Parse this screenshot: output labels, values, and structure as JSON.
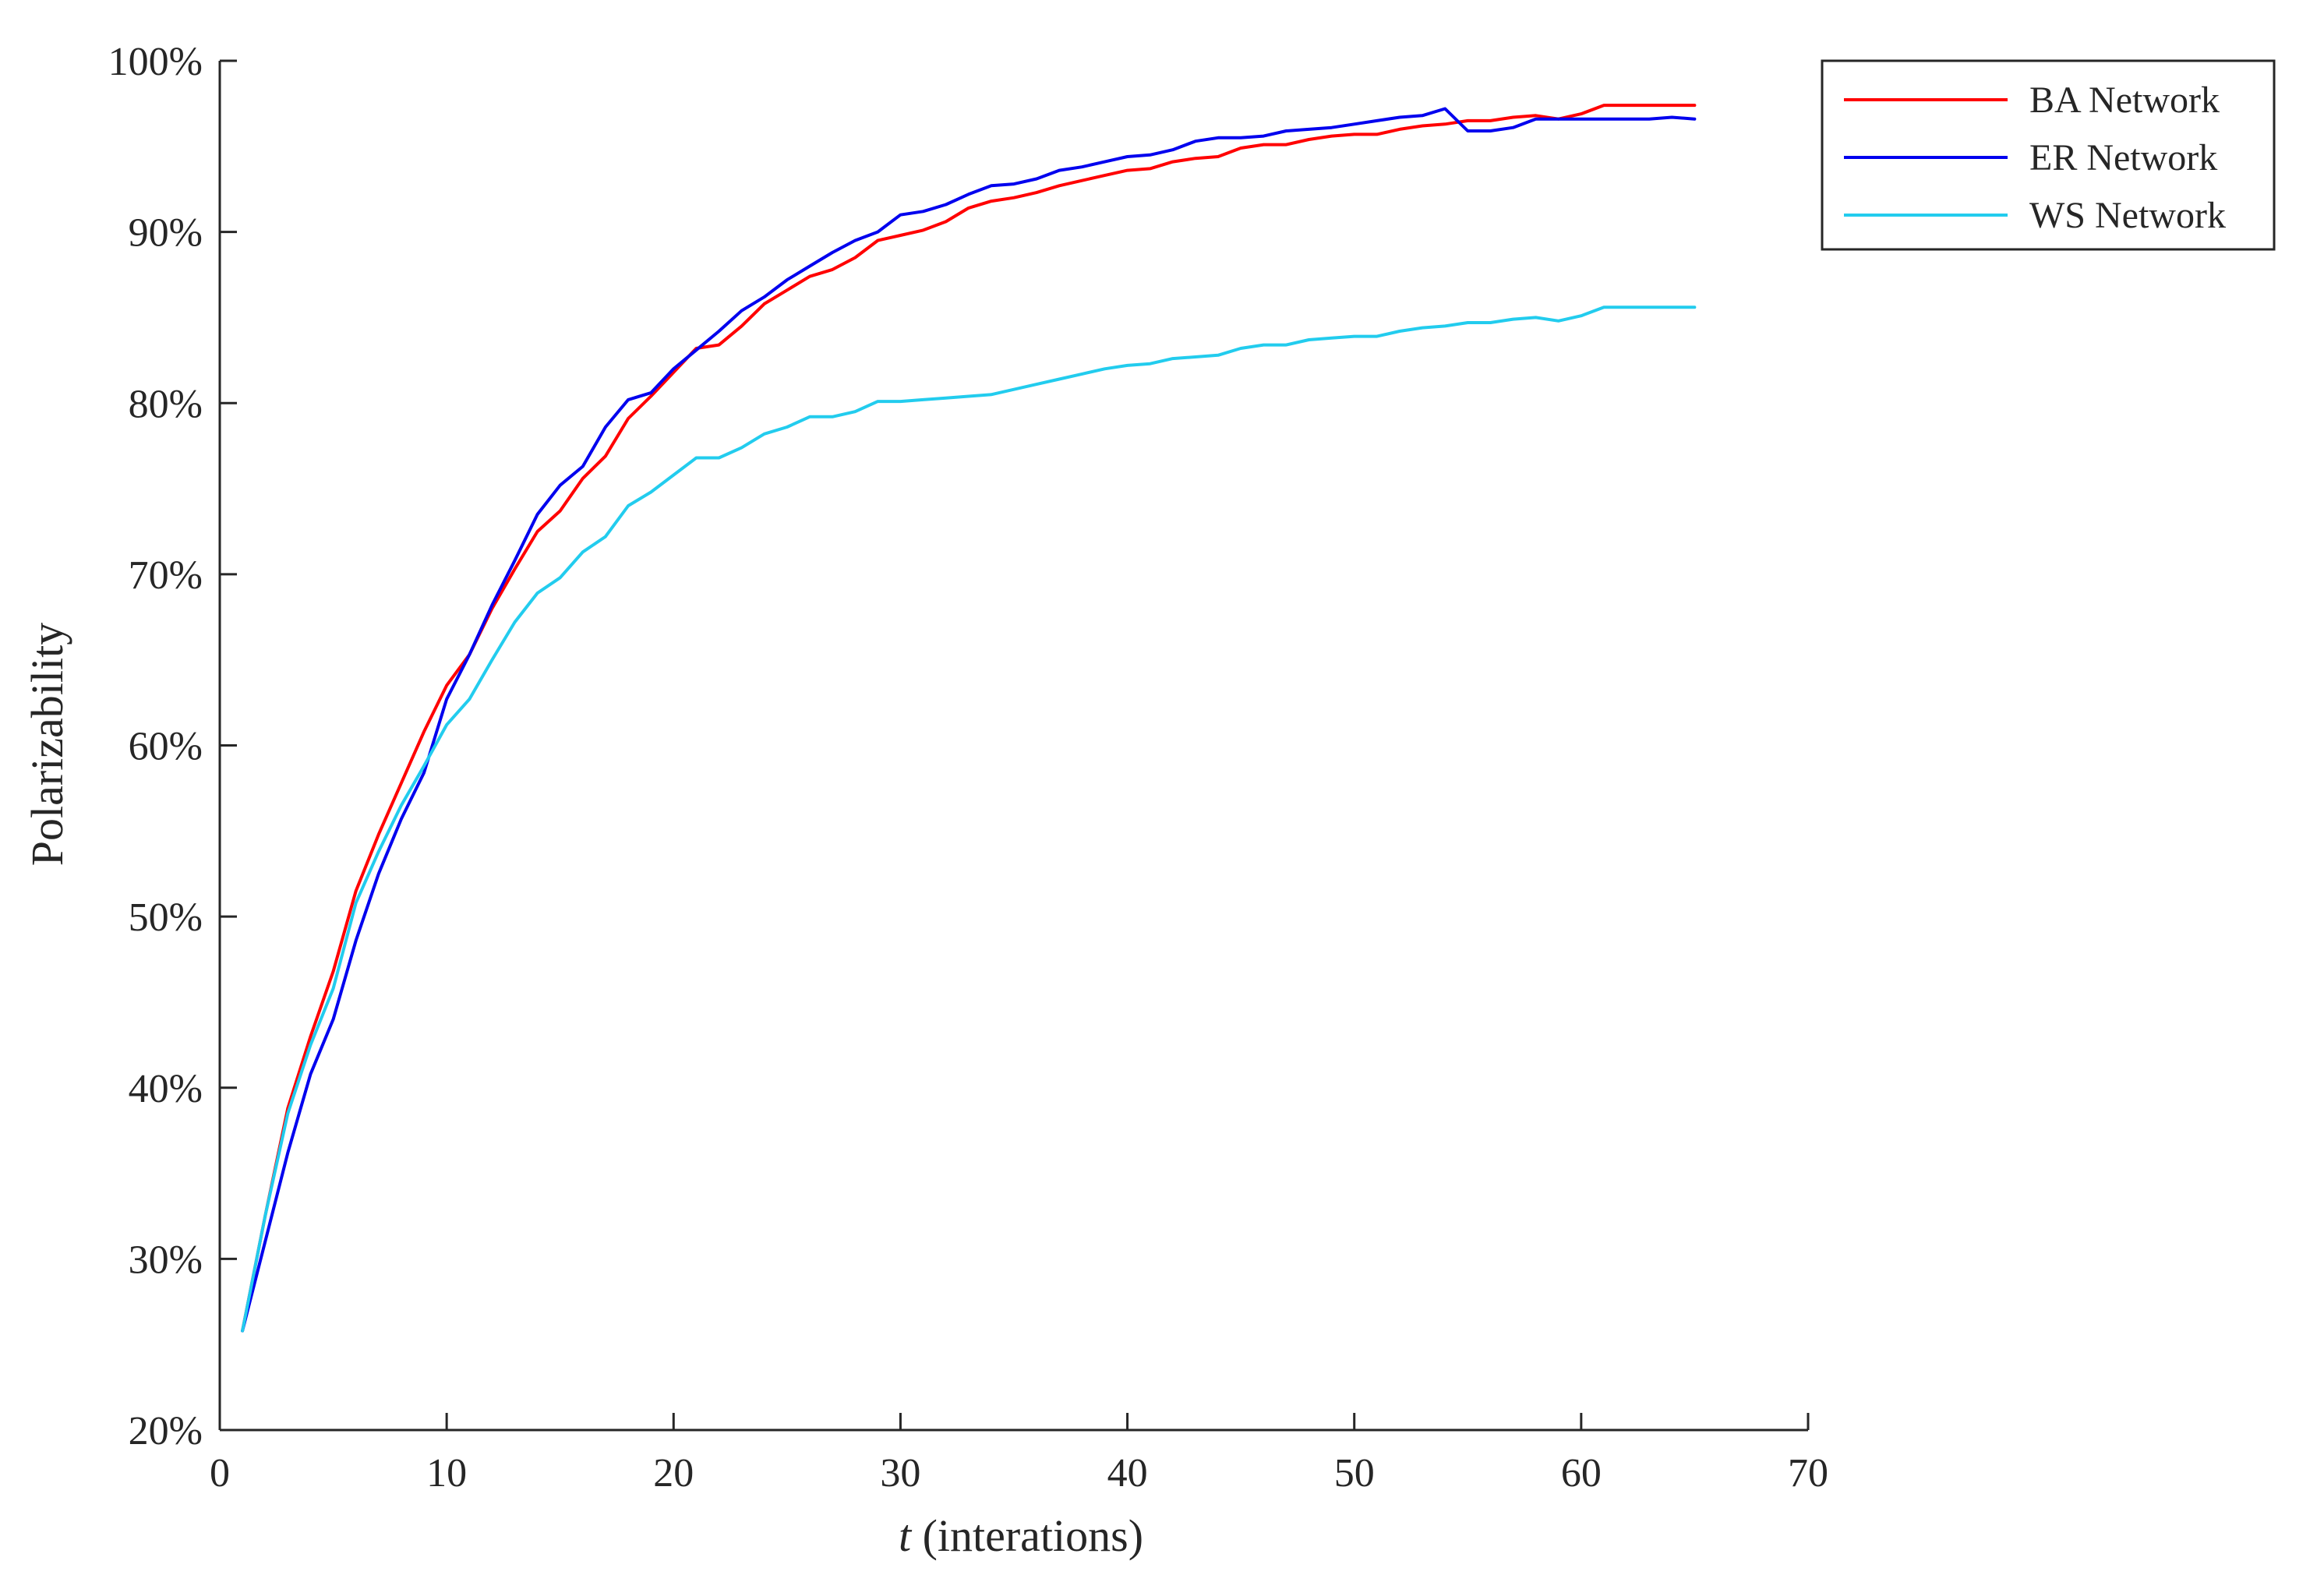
{
  "chart_data": {
    "type": "line",
    "xlabel_var": "t",
    "xlabel_rest": " (interations)",
    "ylabel": "Polarizability",
    "xlim": [
      0,
      70
    ],
    "ylim": [
      20,
      100
    ],
    "xticks": [
      0,
      10,
      20,
      30,
      40,
      50,
      60,
      70
    ],
    "yticks": [
      20,
      30,
      40,
      50,
      60,
      70,
      80,
      90,
      100
    ],
    "ytick_labels": [
      "20%",
      "30%",
      "40%",
      "50%",
      "60%",
      "70%",
      "80%",
      "90%",
      "100%"
    ],
    "grid": false,
    "legend_position": "top-right",
    "x": [
      1,
      2,
      3,
      4,
      5,
      6,
      7,
      8,
      9,
      10,
      11,
      12,
      13,
      14,
      15,
      16,
      17,
      18,
      19,
      20,
      21,
      22,
      23,
      24,
      25,
      26,
      27,
      28,
      29,
      30,
      31,
      32,
      33,
      34,
      35,
      36,
      37,
      38,
      39,
      40,
      41,
      42,
      43,
      44,
      45,
      46,
      47,
      48,
      49,
      50,
      51,
      52,
      53,
      54,
      55,
      56,
      57,
      58,
      59,
      60,
      61,
      62,
      63,
      64,
      65
    ],
    "series": [
      {
        "name": "BA Network",
        "color": "#ff0000",
        "values": [
          25.8,
          32.5,
          38.8,
          43.0,
          46.8,
          51.5,
          54.8,
          57.8,
          60.8,
          63.5,
          65.3,
          68.0,
          70.3,
          72.5,
          73.7,
          75.6,
          76.9,
          79.1,
          80.4,
          81.8,
          83.2,
          83.4,
          84.5,
          85.8,
          86.6,
          87.4,
          87.8,
          88.5,
          89.5,
          89.8,
          90.1,
          90.6,
          91.4,
          91.8,
          92.0,
          92.3,
          92.7,
          93.0,
          93.3,
          93.6,
          93.7,
          94.1,
          94.3,
          94.4,
          94.9,
          95.1,
          95.1,
          95.4,
          95.6,
          95.7,
          95.7,
          96.0,
          96.2,
          96.3,
          96.5,
          96.5,
          96.7,
          96.8,
          96.6,
          96.9,
          97.4,
          97.4,
          97.4,
          97.4,
          97.4
        ]
      },
      {
        "name": "ER Network",
        "color": "#0000ee",
        "values": [
          25.8,
          31.0,
          36.2,
          40.8,
          44.0,
          48.6,
          52.5,
          55.7,
          58.4,
          62.7,
          65.3,
          68.2,
          70.8,
          73.5,
          75.2,
          76.3,
          78.6,
          80.2,
          80.6,
          82.0,
          83.1,
          84.2,
          85.4,
          86.2,
          87.2,
          88.0,
          88.8,
          89.5,
          90.0,
          91.0,
          91.2,
          91.6,
          92.2,
          92.7,
          92.8,
          93.1,
          93.6,
          93.8,
          94.1,
          94.4,
          94.5,
          94.8,
          95.3,
          95.5,
          95.5,
          95.6,
          95.9,
          96.0,
          96.1,
          96.3,
          96.5,
          96.7,
          96.8,
          97.2,
          95.9,
          95.9,
          96.1,
          96.6,
          96.6,
          96.6,
          96.6,
          96.6,
          96.6,
          96.7,
          96.6
        ]
      },
      {
        "name": "WS Network",
        "color": "#22ccee",
        "values": [
          25.8,
          32.5,
          38.5,
          42.5,
          45.8,
          50.8,
          53.8,
          56.5,
          58.8,
          61.2,
          62.7,
          65.0,
          67.2,
          68.9,
          69.8,
          71.3,
          72.2,
          74.0,
          74.8,
          75.8,
          76.8,
          76.8,
          77.4,
          78.2,
          78.6,
          79.2,
          79.2,
          79.5,
          80.1,
          80.1,
          80.2,
          80.3,
          80.4,
          80.5,
          80.8,
          81.1,
          81.4,
          81.7,
          82.0,
          82.2,
          82.3,
          82.6,
          82.7,
          82.8,
          83.2,
          83.4,
          83.4,
          83.7,
          83.8,
          83.9,
          83.9,
          84.2,
          84.4,
          84.5,
          84.7,
          84.7,
          84.9,
          85.0,
          84.8,
          85.1,
          85.6,
          85.6,
          85.6,
          85.6,
          85.6
        ]
      }
    ]
  }
}
